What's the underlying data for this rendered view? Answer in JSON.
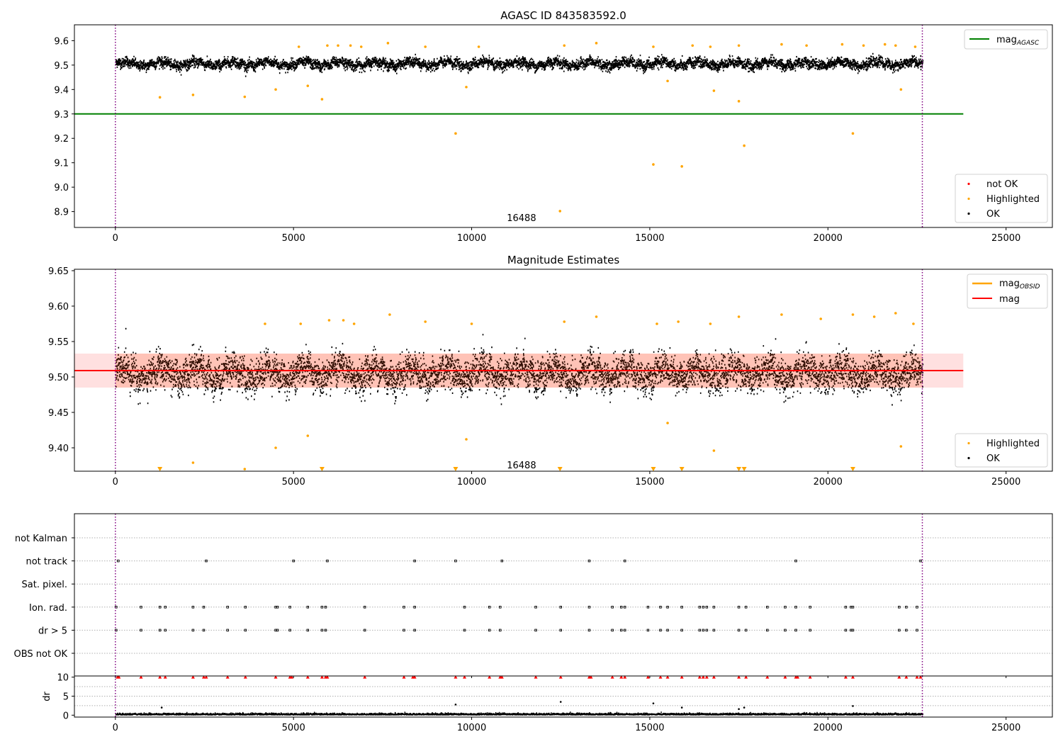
{
  "chart_data": [
    {
      "type": "scatter",
      "title": "AGASC ID 843583592.0",
      "xlim": [
        -1150,
        26300
      ],
      "ylim": [
        8.835,
        9.665
      ],
      "xticks": [
        "0",
        "5000",
        "10000",
        "15000",
        "20000",
        "25000"
      ],
      "yticks": [
        "8.9",
        "9.0",
        "9.1",
        "9.2",
        "9.3",
        "9.4",
        "9.5",
        "9.6"
      ],
      "vlines": [
        0,
        22650
      ],
      "obsid_label": "16488",
      "obsid_label_pos": [
        11400,
        8.875
      ],
      "reference_line": {
        "name": "mag",
        "subscript": "AGASC",
        "y": 9.3,
        "x_end": 23800,
        "color": "#008000"
      },
      "legend_lines": [
        {
          "name": "mag",
          "subscript": "AGASC",
          "color": "#008000"
        }
      ],
      "legend_points": [
        {
          "name": "not OK",
          "color": "#ff0000"
        },
        {
          "name": "Highlighted",
          "color": "#ffa500"
        },
        {
          "name": "OK",
          "color": "#000000"
        }
      ],
      "ok_band": {
        "x_range": [
          0,
          22650
        ],
        "center": 9.505,
        "spread": 0.03
      },
      "highlighted_points": [
        [
          1250,
          9.368
        ],
        [
          2180,
          9.378
        ],
        [
          3630,
          9.37
        ],
        [
          4500,
          9.4
        ],
        [
          5400,
          9.415
        ],
        [
          5800,
          9.36
        ],
        [
          9550,
          9.22
        ],
        [
          9850,
          9.41
        ],
        [
          12480,
          8.902
        ],
        [
          15100,
          9.093
        ],
        [
          15500,
          9.435
        ],
        [
          15900,
          9.085
        ],
        [
          16800,
          9.395
        ],
        [
          17500,
          9.352
        ],
        [
          17650,
          9.17
        ],
        [
          20700,
          9.22
        ],
        [
          22050,
          9.4
        ],
        [
          5150,
          9.575
        ],
        [
          5950,
          9.58
        ],
        [
          6250,
          9.58
        ],
        [
          6600,
          9.58
        ],
        [
          6900,
          9.575
        ],
        [
          7650,
          9.59
        ],
        [
          8700,
          9.575
        ],
        [
          10200,
          9.575
        ],
        [
          12600,
          9.58
        ],
        [
          13500,
          9.59
        ],
        [
          15100,
          9.575
        ],
        [
          16200,
          9.58
        ],
        [
          16700,
          9.575
        ],
        [
          17500,
          9.58
        ],
        [
          18700,
          9.585
        ],
        [
          19400,
          9.58
        ],
        [
          20400,
          9.585
        ],
        [
          21000,
          9.58
        ],
        [
          21600,
          9.585
        ],
        [
          21900,
          9.58
        ],
        [
          22450,
          9.575
        ]
      ]
    },
    {
      "type": "scatter",
      "title": "Magnitude Estimates",
      "xlim": [
        -1150,
        26300
      ],
      "ylim": [
        9.367,
        9.652
      ],
      "xticks": [
        "0",
        "5000",
        "10000",
        "15000",
        "20000",
        "25000"
      ],
      "yticks": [
        "9.40",
        "9.45",
        "9.50",
        "9.55",
        "9.60",
        "9.65"
      ],
      "vlines": [
        0,
        22650
      ],
      "obsid_label": "16488",
      "obsid_label_pos": [
        11400,
        9.376
      ],
      "mag_line": {
        "name": "mag",
        "y": 9.509,
        "x_end": 23800,
        "band": [
          9.485,
          9.533
        ],
        "color": "#ff0000"
      },
      "legend_lines": [
        {
          "name": "mag",
          "subscript": "OBSID",
          "color": "#ffa500"
        },
        {
          "name": "mag",
          "subscript": "",
          "color": "#ff0000"
        }
      ],
      "legend_points": [
        {
          "name": "Highlighted",
          "color": "#ffa500"
        },
        {
          "name": "OK",
          "color": "#000000"
        }
      ],
      "ok_band": {
        "x_range": [
          0,
          22650
        ],
        "center": 9.505,
        "spread": 0.035
      },
      "highlighted_points": [
        [
          2180,
          9.379
        ],
        [
          3630,
          9.37
        ],
        [
          4500,
          9.4
        ],
        [
          5400,
          9.417
        ],
        [
          9850,
          9.412
        ],
        [
          15500,
          9.435
        ],
        [
          16800,
          9.396
        ],
        [
          22050,
          9.402
        ],
        [
          4200,
          9.575
        ],
        [
          5200,
          9.575
        ],
        [
          6000,
          9.58
        ],
        [
          6400,
          9.58
        ],
        [
          6700,
          9.575
        ],
        [
          7700,
          9.588
        ],
        [
          8700,
          9.578
        ],
        [
          10000,
          9.575
        ],
        [
          12600,
          9.578
        ],
        [
          13500,
          9.585
        ],
        [
          15200,
          9.575
        ],
        [
          15800,
          9.578
        ],
        [
          16700,
          9.575
        ],
        [
          17500,
          9.585
        ],
        [
          18700,
          9.588
        ],
        [
          19800,
          9.582
        ],
        [
          20700,
          9.588
        ],
        [
          21300,
          9.585
        ],
        [
          21900,
          9.59
        ],
        [
          22400,
          9.575
        ]
      ],
      "off_scale_markers": [
        1250,
        5800,
        9550,
        12480,
        15100,
        15900,
        17500,
        17650,
        20700
      ]
    },
    {
      "type": "scatter",
      "title": "",
      "xlim": [
        -1150,
        26300
      ],
      "xticks": [
        "0",
        "5000",
        "10000",
        "15000",
        "20000",
        "25000"
      ],
      "vlines": [
        0,
        22650
      ],
      "categories": [
        "not Kalman",
        "not track",
        "Sat. pixel.",
        "Ion. rad.",
        "dr > 5",
        "OBS not OK"
      ],
      "flag_points": {
        "not Kalman": [],
        "not track": [
          80,
          2550,
          5000,
          5950,
          8400,
          9550,
          10850,
          13300,
          14300,
          19100,
          22600
        ],
        "Sat. pixel.": [],
        "Ion. rad.": [
          20,
          720,
          1250,
          1400,
          2180,
          2480,
          3150,
          3650,
          4500,
          4550,
          4900,
          5400,
          5800,
          5900,
          7000,
          8100,
          8400,
          9800,
          10500,
          10800,
          11800,
          12500,
          13300,
          13950,
          14200,
          14300,
          14950,
          15300,
          15500,
          15900,
          16400,
          16500,
          16600,
          16800,
          17500,
          17700,
          18300,
          18800,
          19100,
          19500,
          20500,
          20650,
          20700,
          22000,
          22200,
          22500
        ],
        "dr > 5": [
          20,
          720,
          1250,
          1400,
          2180,
          2480,
          3150,
          3650,
          4500,
          4550,
          4900,
          5400,
          5800,
          5900,
          7000,
          8100,
          8400,
          9800,
          10500,
          10800,
          11800,
          12500,
          13300,
          13950,
          14200,
          14300,
          14950,
          15300,
          15500,
          15900,
          16400,
          16500,
          16600,
          16800,
          17500,
          17700,
          18300,
          18800,
          19100,
          19500,
          20500,
          20650,
          20700,
          22000,
          22200,
          22500
        ],
        "OBS not OK": []
      }
    },
    {
      "type": "scatter",
      "title": "",
      "ylabel": "dr",
      "xlim": [
        -1150,
        26300
      ],
      "ylim": [
        -0.5,
        10.3
      ],
      "xticks": [
        "0",
        "5000",
        "10000",
        "15000",
        "20000",
        "25000"
      ],
      "yticks": [
        "0",
        "5",
        "10"
      ],
      "vlines": [
        0,
        22650
      ],
      "clipped_points_y": 10,
      "clipped_points_x": [
        60,
        100,
        720,
        1250,
        1400,
        2180,
        2480,
        2550,
        3150,
        3650,
        4500,
        4900,
        4950,
        5400,
        5800,
        5900,
        5950,
        7000,
        8100,
        8350,
        8400,
        9550,
        9800,
        10500,
        10800,
        10850,
        11800,
        12500,
        13300,
        13350,
        13950,
        14200,
        14300,
        14950,
        15300,
        15500,
        15900,
        16400,
        16500,
        16600,
        16800,
        17500,
        17700,
        18300,
        18800,
        19100,
        19150,
        19500,
        20500,
        20700,
        22000,
        22200,
        22500,
        22600
      ],
      "outliers": [
        [
          1300,
          2.0
        ],
        [
          9550,
          2.8
        ],
        [
          12500,
          3.5
        ],
        [
          15100,
          3.1
        ],
        [
          15900,
          2.0
        ],
        [
          17500,
          1.6
        ],
        [
          17650,
          2.0
        ],
        [
          20700,
          2.4
        ]
      ]
    }
  ]
}
